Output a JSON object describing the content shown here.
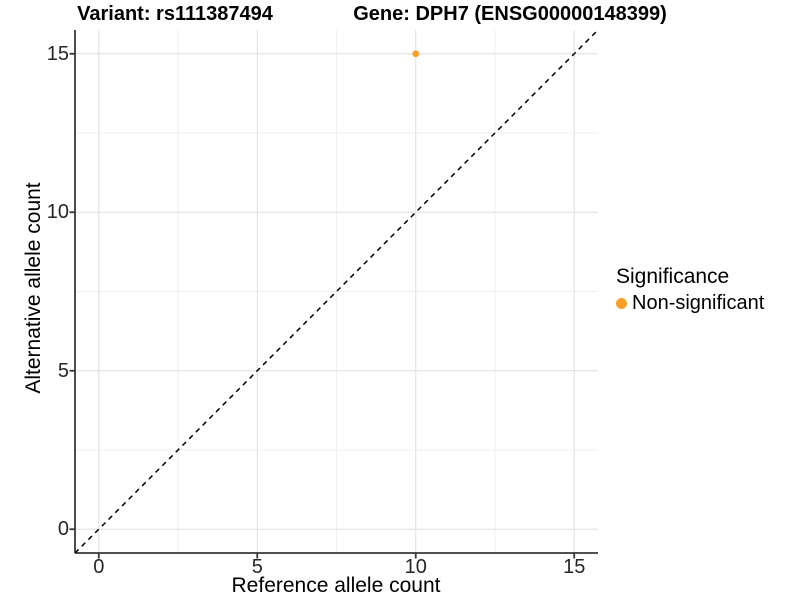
{
  "chart_data": {
    "type": "scatter",
    "title_left": "Variant: rs111387494",
    "title_right": "Gene: DPH7 (ENSG00000148399)",
    "xlabel": "Reference allele count",
    "ylabel": "Alternative allele count",
    "xlim": [
      -0.75,
      15.75
    ],
    "ylim": [
      -0.75,
      15.75
    ],
    "xticks": [
      0,
      5,
      10,
      15
    ],
    "yticks": [
      0,
      5,
      10,
      15
    ],
    "xminor": [
      2.5,
      7.5,
      12.5
    ],
    "yminor": [
      2.5,
      7.5,
      12.5
    ],
    "grid": "major+minor",
    "points": [
      {
        "x": 10,
        "y": 15,
        "significance": "Non-significant"
      }
    ],
    "point_color": "#F9A02C",
    "identity_line": {
      "equation": "y = x",
      "style": "dashed",
      "color": "#000000"
    },
    "legend": {
      "title": "Significance",
      "position": "right",
      "entries": [
        {
          "label": "Non-significant",
          "color": "#F9A02C"
        }
      ]
    }
  }
}
